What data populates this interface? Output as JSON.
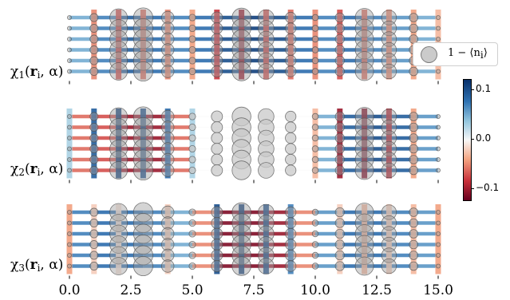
{
  "chart_data": {
    "type": "heatmap",
    "panels": [
      {
        "name": "chi_1"
      },
      {
        "name": "chi_2"
      },
      {
        "name": "chi_3"
      }
    ],
    "ylabels": [
      "χ",
      "1",
      "(",
      "r",
      "i",
      ", α)",
      "χ",
      "2",
      "(",
      "r",
      "i",
      ", α)",
      "χ",
      "3",
      "(",
      "r",
      "i",
      ", α)"
    ],
    "xticks": [
      "0.0",
      "2.5",
      "5.0",
      "7.5",
      "10.0",
      "12.5",
      "15.0"
    ],
    "xlim": [
      0,
      15
    ],
    "sites_x": [
      0,
      1,
      2,
      3,
      4,
      5,
      6,
      7,
      8,
      9,
      10,
      11,
      12,
      13,
      14,
      15
    ],
    "rows": 6,
    "hole_density": [
      0.02,
      0.18,
      0.55,
      0.62,
      0.35,
      0.12,
      0.3,
      0.6,
      0.48,
      0.28,
      0.1,
      0.22,
      0.58,
      0.44,
      0.2,
      0.02
    ],
    "colorbar": {
      "min": -0.12,
      "max": 0.12,
      "ticks": [
        "0.1",
        "0.0",
        "−0.1"
      ],
      "tick_values": [
        0.1,
        0.0,
        -0.1
      ],
      "colormap": "RdBu"
    },
    "chi_1_vertical": [
      0.0,
      -0.05,
      -0.07,
      -0.06,
      -0.05,
      -0.04,
      -0.08,
      -0.1,
      -0.07,
      -0.06,
      -0.05,
      -0.07,
      -0.06,
      -0.05,
      -0.04,
      -0.03
    ],
    "chi_1_horizontal": [
      0.05,
      0.07,
      0.09,
      0.08,
      0.07,
      0.08,
      0.1,
      0.11,
      0.1,
      0.08,
      0.07,
      0.08,
      0.07,
      0.06,
      0.05
    ],
    "chi_2_vertical": [
      0.03,
      0.09,
      0.11,
      0.1,
      0.08,
      0.03,
      0.0,
      0.0,
      0.0,
      0.0,
      -0.03,
      -0.1,
      -0.11,
      -0.09,
      -0.04,
      0.0
    ],
    "chi_2_horizontal": [
      -0.06,
      -0.07,
      -0.1,
      -0.1,
      -0.06,
      0.0,
      0.0,
      0.0,
      0.0,
      0.0,
      0.05,
      0.09,
      0.1,
      0.09,
      0.06
    ],
    "chi_3_vertical": [
      -0.04,
      -0.02,
      -0.01,
      0.0,
      -0.02,
      0.0,
      0.1,
      0.11,
      0.1,
      0.07,
      0.0,
      -0.02,
      -0.03,
      -0.02,
      -0.03,
      -0.04
    ],
    "chi_3_horizontal": [
      0.07,
      0.08,
      0.08,
      0.07,
      0.05,
      -0.05,
      -0.11,
      -0.11,
      -0.1,
      -0.05,
      0.06,
      0.08,
      0.08,
      0.07,
      0.06
    ],
    "legend": {
      "label": "1 − ⟨n",
      "label_sub": "i",
      "label_end": "⟩",
      "location": "upper right"
    }
  }
}
